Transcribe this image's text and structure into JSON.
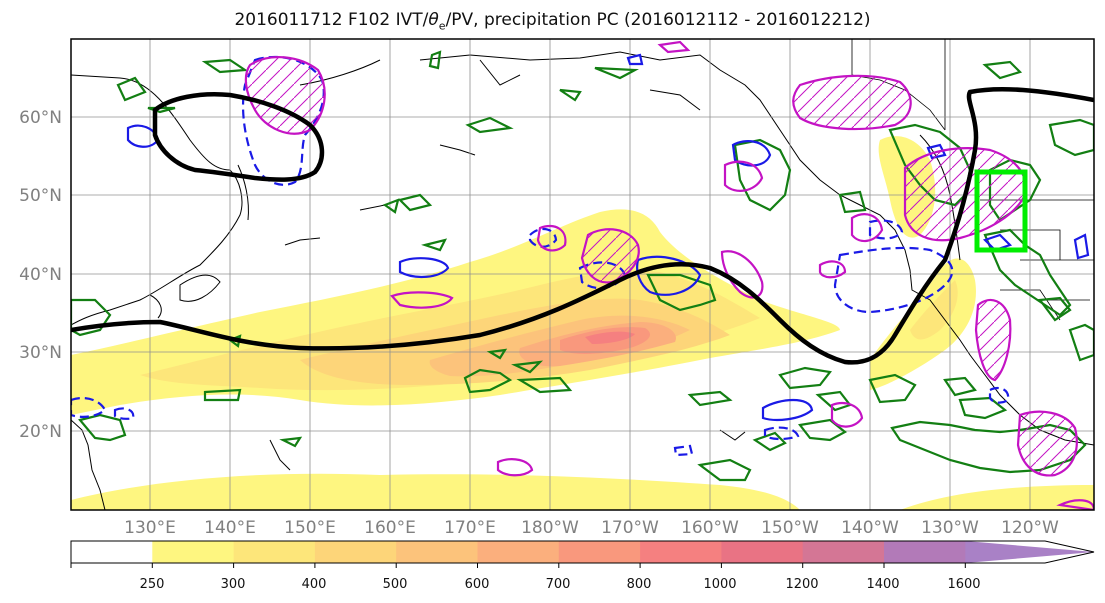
{
  "figure": {
    "title_prefix": "2016011712 F102 IVT/",
    "title_theta": "θ",
    "title_sub": "e",
    "title_suffix": "/PV, precipitation PC (2016012112 - 2016012212)"
  },
  "axes": {
    "lat_labels": [
      "60°N",
      "50°N",
      "40°N",
      "30°N",
      "20°N"
    ],
    "lon_labels": [
      "130°E",
      "140°E",
      "150°E",
      "160°E",
      "170°E",
      "180°W",
      "170°W",
      "160°W",
      "150°W",
      "140°W",
      "130°W",
      "120°W"
    ]
  },
  "colorbar": {
    "tick_labels": [
      "250",
      "300",
      "400",
      "500",
      "600",
      "700",
      "800",
      "1000",
      "1200",
      "1400",
      "1600"
    ],
    "colors": [
      "#ffffff",
      "#fef680",
      "#fde67a",
      "#fdd579",
      "#fcc37b",
      "#fbaf7d",
      "#f9987d",
      "#f58080",
      "#e97384",
      "#d47695",
      "#b27ab8",
      "#a981c6"
    ]
  },
  "overlays": {
    "box_color": "#00ee00",
    "contour_colors": {
      "green": "#137f13",
      "blue": "#1a1ae6",
      "magenta": "#c413c4",
      "black": "#000000"
    }
  }
}
